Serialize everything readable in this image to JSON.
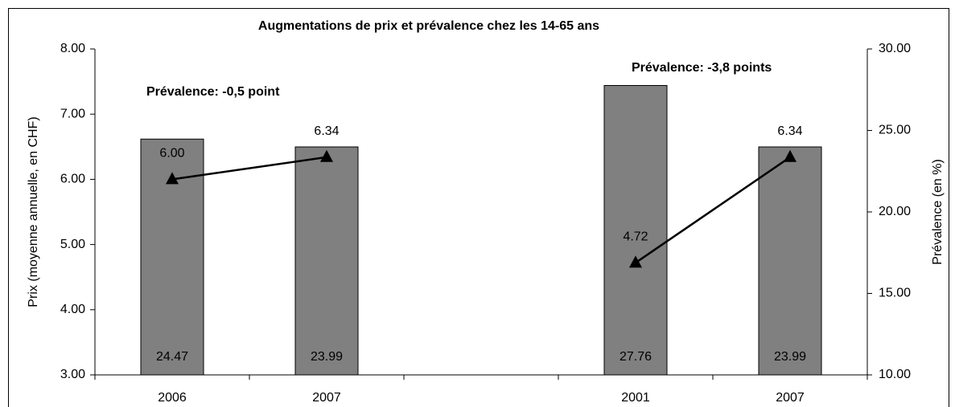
{
  "chart_data": {
    "type": "combo",
    "title": "Augmentations de prix et prévalence chez les 14-65 ans",
    "y_label": "Prix (moyenne annuelle, en CHF)",
    "y2_label": "Prévalence (en %)",
    "annotations": [
      "Prévalence: -0,5 point",
      "Prévalence: -3,8 points"
    ],
    "categories": [
      "2006",
      "2007",
      null,
      "2001",
      "2007"
    ],
    "series": [
      {
        "type": "bar",
        "axis": "y2",
        "color": "#808080",
        "values": [
          24.47,
          23.99,
          null,
          27.76,
          23.99
        ]
      },
      {
        "type": "line",
        "color": "#000000",
        "values": [
          6.0,
          6.34,
          null,
          4.72,
          6.34
        ],
        "value_labels": [
          "6.00",
          "6.34",
          null,
          "4.72",
          "6.34"
        ]
      }
    ],
    "ylim": [
      3,
      8
    ],
    "yticks": [
      {
        "value": 3,
        "label": "3.00"
      },
      {
        "value": 4,
        "label": "4.00"
      },
      {
        "value": 5,
        "label": "5.00"
      },
      {
        "value": 6,
        "label": "6.00"
      },
      {
        "value": 7,
        "label": "7.00"
      },
      {
        "value": 8,
        "label": "8.00"
      }
    ],
    "y2lim": [
      10,
      30
    ],
    "y2ticks": [
      {
        "value": 10,
        "label": "10.00"
      },
      {
        "value": 15,
        "label": "15.00"
      },
      {
        "value": 20,
        "label": "20.00"
      },
      {
        "value": 25,
        "label": "25.00"
      },
      {
        "value": 30,
        "label": "30.00"
      }
    ],
    "grid": false
  }
}
